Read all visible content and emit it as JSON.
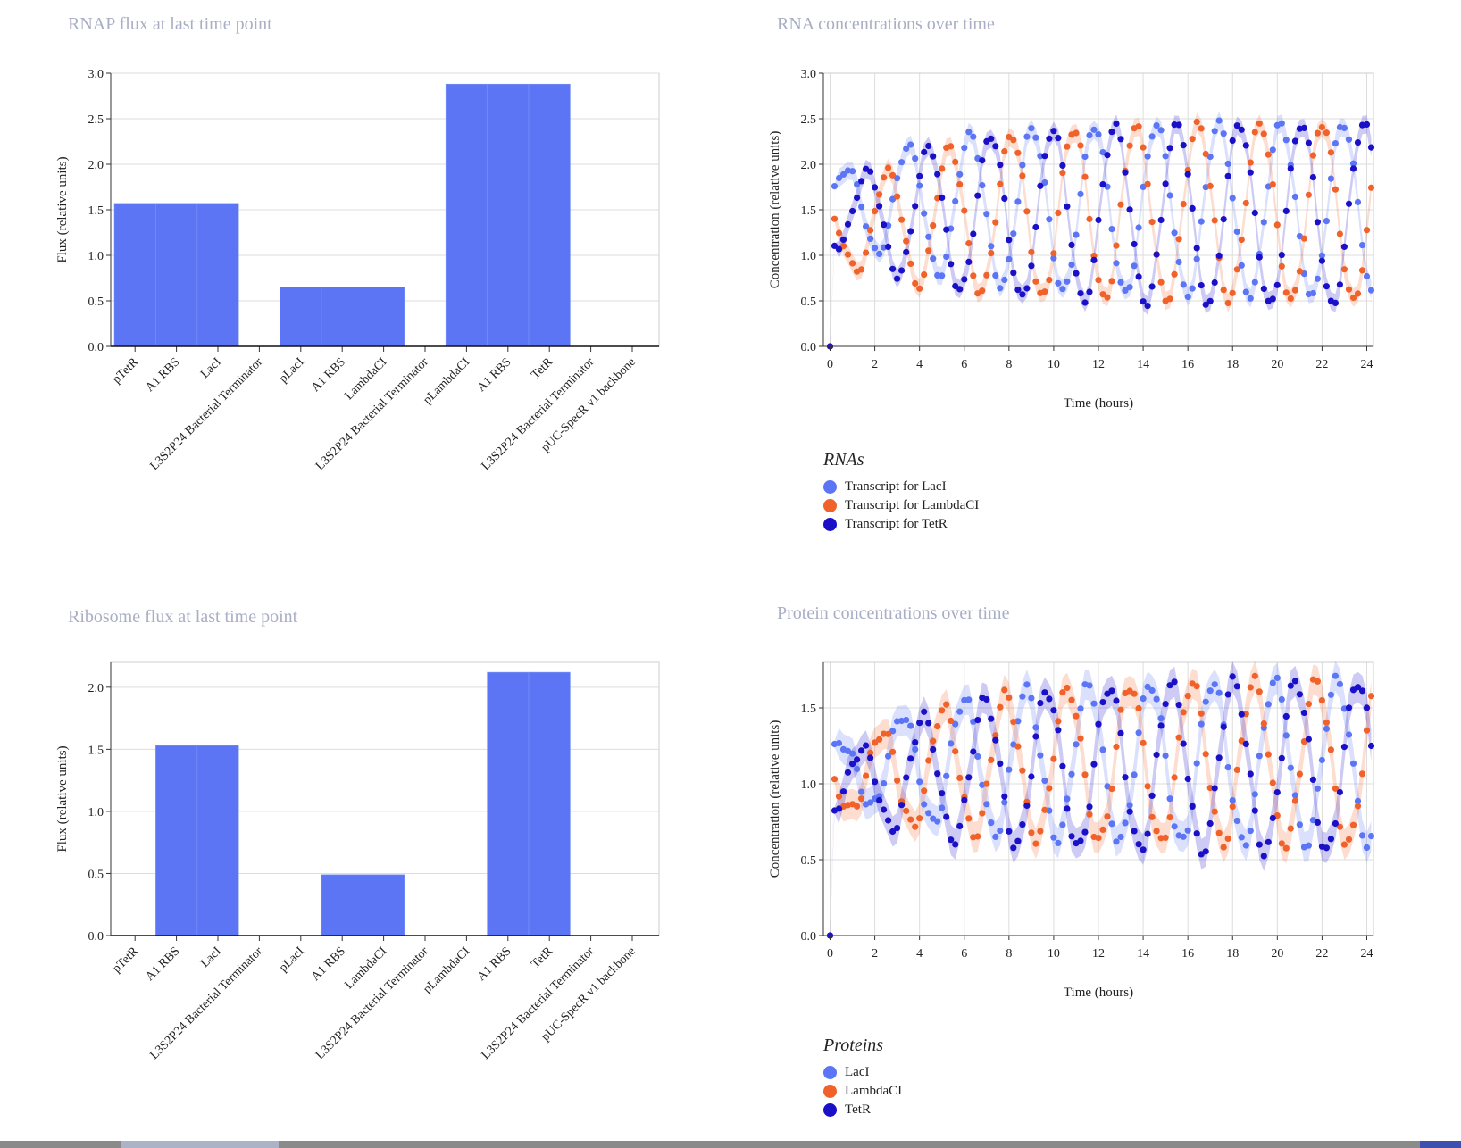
{
  "colors": {
    "bar": "#5b75f5",
    "laci": "#5b75f5",
    "lambdaci": "#f0622a",
    "tetr": "#1a10c8",
    "title": "#a9aec4",
    "grid": "#dddddd"
  },
  "rnap_panel": {
    "title": "RNAP flux at last time point"
  },
  "ribo_panel": {
    "title": "Ribosome flux at last time point"
  },
  "rna_panel": {
    "title": "RNA concentrations over time"
  },
  "protein_panel": {
    "title": "Protein concentrations over time"
  },
  "rna_legend": {
    "title": "RNAs",
    "items": [
      "Transcript for LacI",
      "Transcript for LambdaCI",
      "Transcript for TetR"
    ]
  },
  "protein_legend": {
    "title": "Proteins",
    "items": [
      "LacI",
      "LambdaCI",
      "TetR"
    ]
  },
  "chart_data": [
    {
      "id": "rnap",
      "type": "bar",
      "title": "RNAP flux at last time point",
      "ylabel": "Flux (relative units)",
      "xlabel": "",
      "ylim": [
        0,
        3.0
      ],
      "yticks": [
        0.0,
        0.5,
        1.0,
        1.5,
        2.0,
        2.5,
        3.0
      ],
      "grid": true,
      "categories": [
        "pTetR",
        "A1 RBS",
        "LacI",
        "L3S2P24 Bacterial Terminator",
        "pLacI",
        "A1 RBS",
        "LambdaCI",
        "L3S2P24 Bacterial Terminator",
        "pLambdaCI",
        "A1 RBS",
        "TetR",
        "L3S2P24 Bacterial Terminator",
        "pUC-SpecR v1 backbone"
      ],
      "values": [
        1.57,
        1.57,
        1.57,
        0,
        0.65,
        0.65,
        0.65,
        0,
        2.88,
        2.88,
        2.88,
        0,
        0
      ]
    },
    {
      "id": "ribo",
      "type": "bar",
      "title": "Ribosome flux at last time point",
      "ylabel": "Flux (relative units)",
      "xlabel": "",
      "ylim": [
        0,
        2.2
      ],
      "yticks": [
        0.0,
        0.5,
        1.0,
        1.5,
        2.0
      ],
      "grid": true,
      "categories": [
        "pTetR",
        "A1 RBS",
        "LacI",
        "L3S2P24 Bacterial Terminator",
        "pLacI",
        "A1 RBS",
        "LambdaCI",
        "L3S2P24 Bacterial Terminator",
        "pLambdaCI",
        "A1 RBS",
        "TetR",
        "L3S2P24 Bacterial Terminator",
        "pUC-SpecR v1 backbone"
      ],
      "values": [
        0,
        1.53,
        1.53,
        0,
        0,
        0.49,
        0.49,
        0,
        0,
        2.12,
        2.12,
        0,
        0
      ]
    },
    {
      "id": "rna",
      "type": "scatter",
      "title": "RNA concentrations over time",
      "xlabel": "Time (hours)",
      "ylabel": "Concentration (relative units)",
      "xlim": [
        -0.3,
        24.3
      ],
      "ylim": [
        0,
        3.0
      ],
      "xticks": [
        0,
        2,
        4,
        6,
        8,
        10,
        12,
        14,
        16,
        18,
        20,
        22,
        24
      ],
      "yticks": [
        0.0,
        0.5,
        1.0,
        1.5,
        2.0,
        2.5,
        3.0
      ],
      "grid": true,
      "legend": "bottom-left",
      "dt": 0.2,
      "series": [
        {
          "name": "Transcript for LacI",
          "color": "#5b75f5",
          "peak": 2.55,
          "start": 1.6,
          "trough": 0.55,
          "amp0": 0.25,
          "growth_tau": 4.0,
          "period": 2.78,
          "phase": 0.0
        },
        {
          "name": "Transcript for LambdaCI",
          "color": "#f0622a",
          "peak": 2.88,
          "start": 1.2,
          "trough": 0.5,
          "amp0": 0.25,
          "growth_tau": 4.0,
          "period": 2.78,
          "phase": 2.09
        },
        {
          "name": "Transcript for TetR",
          "color": "#1a10c8",
          "peak": 2.5,
          "start": 1.4,
          "trough": 0.45,
          "amp0": 0.25,
          "growth_tau": 4.0,
          "period": 2.78,
          "phase": 4.19
        }
      ]
    },
    {
      "id": "protein",
      "type": "scatter",
      "title": "Protein concentrations over time",
      "xlabel": "Time (hours)",
      "ylabel": "Concentration (relative units)",
      "xlim": [
        -0.3,
        24.3
      ],
      "ylim": [
        0,
        1.8
      ],
      "xticks": [
        0,
        2,
        4,
        6,
        8,
        10,
        12,
        14,
        16,
        18,
        20,
        22,
        24
      ],
      "yticks": [
        0.0,
        0.5,
        1.0,
        1.5
      ],
      "grid": true,
      "legend": "bottom-left",
      "dt": 0.2,
      "series": [
        {
          "name": "LacI",
          "color": "#5b75f5",
          "peak": 1.05,
          "start": 1.1,
          "trough": 0.6,
          "amp0": 0.12,
          "growth_tau": 4.5,
          "period": 2.78,
          "phase": 0.6
        },
        {
          "name": "LambdaCI",
          "color": "#f0622a",
          "peak": 0.57,
          "start": 1.0,
          "trough": 0.6,
          "amp0": 0.12,
          "growth_tau": 4.5,
          "period": 2.78,
          "phase": 2.69
        },
        {
          "name": "TetR",
          "color": "#1a10c8",
          "peak": 0.5,
          "start": 0.95,
          "trough": 0.55,
          "amp0": 0.12,
          "growth_tau": 4.5,
          "period": 2.78,
          "phase": 4.78
        }
      ]
    }
  ]
}
